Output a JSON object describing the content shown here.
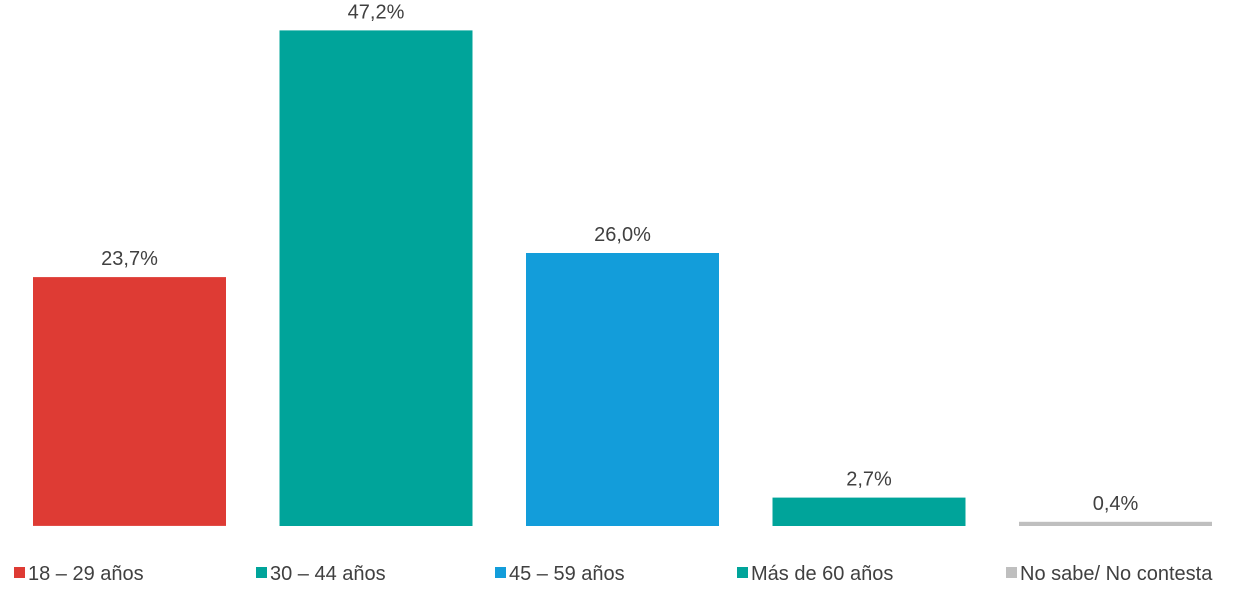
{
  "chart_data": {
    "type": "bar",
    "categories": [
      "18 – 29 años",
      "30 – 44 años",
      "45 – 59 años",
      "Más de 60 años",
      "No sabe/ No contesta"
    ],
    "values": [
      23.7,
      47.2,
      26.0,
      2.7,
      0.4
    ],
    "value_labels": [
      "23,7%",
      "47,2%",
      "26,0%",
      "2,7%",
      "0,4%"
    ],
    "colors": [
      "#de3b34",
      "#00a49a",
      "#139dda",
      "#00a49a",
      "#bfbfbf"
    ],
    "title": "",
    "xlabel": "",
    "ylabel": "",
    "ylim": [
      0,
      50
    ],
    "grid": false,
    "legend_position": "bottom",
    "label_color": "#404040"
  }
}
